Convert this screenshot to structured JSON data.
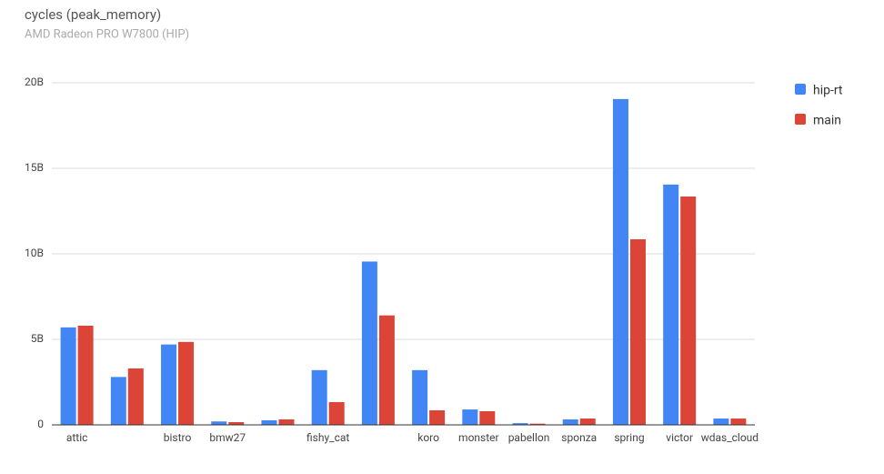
{
  "chart_data": {
    "type": "bar",
    "title": "cycles (peak_memory)",
    "subtitle": "AMD Radeon PRO W7800 (HIP)",
    "categories": [
      "attic",
      null,
      "bistro",
      "bmw27",
      null,
      "fishy_cat",
      null,
      "koro",
      "monster",
      "pabellon",
      "sponza",
      "spring",
      "victor",
      "wdas_cloud"
    ],
    "series": [
      {
        "name": "hip-rt",
        "color": "#4285f4",
        "values": [
          5.7,
          2.8,
          4.7,
          0.2,
          0.27,
          3.2,
          9.55,
          3.2,
          0.9,
          0.1,
          0.32,
          19.05,
          14.05,
          0.37
        ]
      },
      {
        "name": "main",
        "color": "#db4437",
        "values": [
          5.8,
          3.3,
          4.85,
          0.16,
          0.32,
          1.33,
          6.4,
          0.85,
          0.8,
          0.07,
          0.37,
          10.85,
          13.35,
          0.37
        ]
      }
    ],
    "ylim": [
      0,
      20
    ],
    "yticks": [
      0,
      {
        "value": 5,
        "label": "5B"
      },
      {
        "value": 10,
        "label": "10B"
      },
      {
        "value": 15,
        "label": "15B"
      },
      {
        "value": 20,
        "label": "20B"
      }
    ],
    "grid": true,
    "legend": "right"
  }
}
